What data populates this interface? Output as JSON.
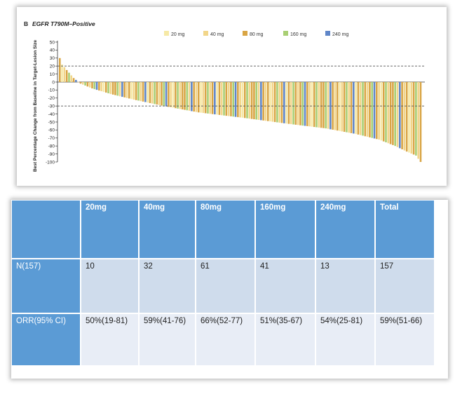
{
  "chart_data": {
    "type": "bar",
    "title_letter": "B",
    "title": "EGFR T790M–Positive",
    "ylabel": "Best Percentage Change from Baseline in Target-Lesion Size",
    "ylim": [
      -100,
      50
    ],
    "yticks": [
      50,
      40,
      30,
      20,
      10,
      0,
      -10,
      -20,
      -30,
      -40,
      -50,
      -60,
      -70,
      -80,
      -90,
      -100
    ],
    "reference_lines": [
      20,
      -30
    ],
    "legend": [
      {
        "name": "20 mg",
        "color": "#f6e9a6"
      },
      {
        "name": "40 mg",
        "color": "#f2d68a"
      },
      {
        "name": "80 mg",
        "color": "#d9a544"
      },
      {
        "name": "160 mg",
        "color": "#a9cf74"
      },
      {
        "name": "240 mg",
        "color": "#5f86c8"
      }
    ],
    "legend_position": "top-right",
    "n_bars": 157,
    "anchors": [
      [
        0,
        30
      ],
      [
        1,
        22
      ],
      [
        3,
        15
      ],
      [
        6,
        5
      ],
      [
        9,
        -2
      ],
      [
        14,
        -8
      ],
      [
        22,
        -15
      ],
      [
        32,
        -22
      ],
      [
        45,
        -30
      ],
      [
        60,
        -38
      ],
      [
        80,
        -45
      ],
      [
        98,
        -52
      ],
      [
        115,
        -58
      ],
      [
        128,
        -65
      ],
      [
        138,
        -72
      ],
      [
        145,
        -80
      ],
      [
        150,
        -87
      ],
      [
        154,
        -92
      ],
      [
        156,
        -100
      ]
    ]
  },
  "table": {
    "headers": [
      "",
      "20mg",
      "40mg",
      "80mg",
      "160mg",
      "240mg",
      "Total"
    ],
    "rows": [
      [
        "N(157)",
        "10",
        "32",
        "61",
        "41",
        "13",
        "157"
      ],
      [
        "ORR(95% CI)",
        "50%(19-81)",
        "59%(41-76)",
        "66%(52-77)",
        "51%(35-67)",
        "54%(25-81)",
        "59%(51-66)"
      ]
    ]
  }
}
